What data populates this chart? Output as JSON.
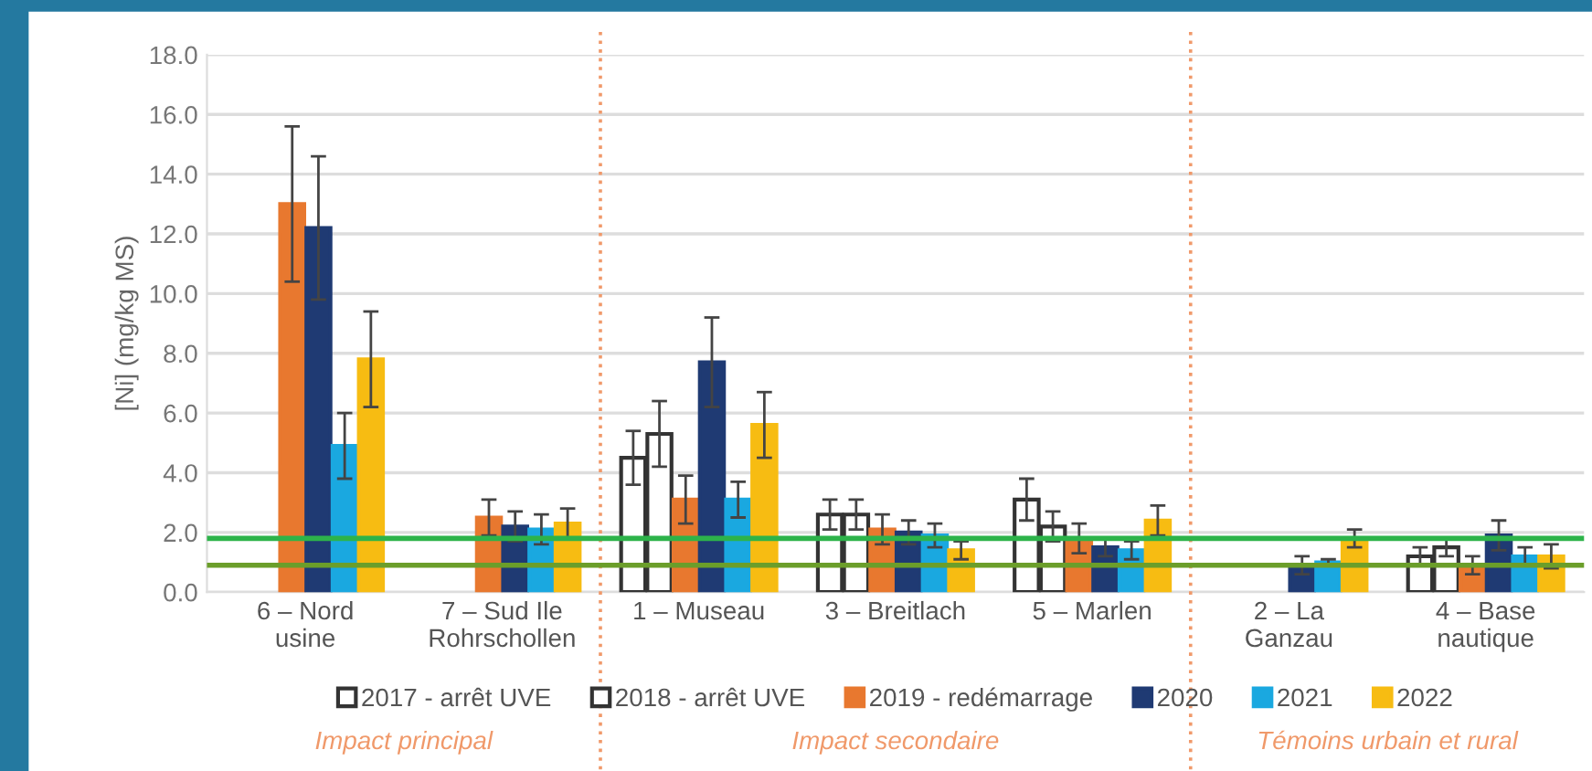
{
  "chart_data": {
    "type": "bar",
    "ylabel": "[Ni] (mg/kg MS)",
    "categories": [
      "6 – Nord\nusine",
      "7 – Sud Ile\nRohrschollen",
      "1 – Museau",
      "3 – Breitlach",
      "5 – Marlen",
      "2 – La\nGanzau",
      "4 – Base\nnautique"
    ],
    "series": [
      {
        "name": "2017 - arrêt UVE",
        "color": "#ffffff",
        "values": [
          null,
          null,
          4.5,
          2.6,
          3.1,
          null,
          1.2
        ],
        "errors": [
          null,
          null,
          0.9,
          0.5,
          0.7,
          null,
          0.3
        ]
      },
      {
        "name": "2018 - arrêt UVE",
        "color": "#ffffff",
        "values": [
          null,
          null,
          5.3,
          2.6,
          2.2,
          null,
          1.5
        ],
        "errors": [
          null,
          null,
          1.1,
          0.5,
          0.5,
          null,
          0.3
        ]
      },
      {
        "name": "2019 - redémarrage",
        "color": "#e8782f",
        "values": [
          13.0,
          2.5,
          3.1,
          2.1,
          1.8,
          null,
          0.9
        ],
        "errors": [
          2.6,
          0.6,
          0.8,
          0.5,
          0.5,
          null,
          0.3
        ]
      },
      {
        "name": "2020",
        "color": "#1f3a73",
        "values": [
          12.2,
          2.2,
          7.7,
          2.0,
          1.5,
          0.9,
          1.9
        ],
        "errors": [
          2.4,
          0.5,
          1.5,
          0.4,
          0.3,
          0.3,
          0.5
        ]
      },
      {
        "name": "2021",
        "color": "#1aa8e0",
        "values": [
          4.9,
          2.1,
          3.1,
          1.9,
          1.4,
          1.0,
          1.2
        ],
        "errors": [
          1.1,
          0.5,
          0.6,
          0.4,
          0.3,
          0.1,
          0.3
        ]
      },
      {
        "name": "2022",
        "color": "#f7bc12",
        "values": [
          7.8,
          2.3,
          5.6,
          1.4,
          2.4,
          1.8,
          1.2
        ],
        "errors": [
          1.6,
          0.5,
          1.1,
          0.3,
          0.5,
          0.3,
          0.4
        ]
      }
    ],
    "ylim": [
      0,
      18
    ],
    "yticks": [
      {
        "value": 0,
        "label": "0.0"
      },
      {
        "value": 2,
        "label": "2.0"
      },
      {
        "value": 4,
        "label": "4.0"
      },
      {
        "value": 6,
        "label": "6.0"
      },
      {
        "value": 8,
        "label": "8.0"
      },
      {
        "value": 10,
        "label": "10.0"
      },
      {
        "value": 12,
        "label": "12.0"
      },
      {
        "value": 14,
        "label": "14.0"
      },
      {
        "value": 16,
        "label": "16.0"
      },
      {
        "value": 18,
        "label": "18.0"
      }
    ],
    "grid": "y",
    "legend": "bottom",
    "ref_lines": [
      {
        "axis": "y",
        "value": 1.8,
        "color": "#2db34a",
        "line_style": "solid"
      },
      {
        "axis": "y",
        "value": 0.9,
        "color": "#6b9e2a",
        "line_style": "solid"
      }
    ],
    "annotations": [
      "Impact principal",
      "Impact secondaire",
      "Témoins urbain et rural"
    ]
  }
}
